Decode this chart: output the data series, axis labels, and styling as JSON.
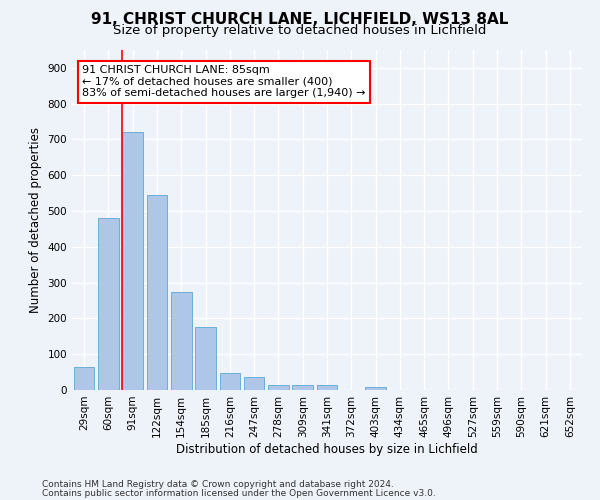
{
  "title1": "91, CHRIST CHURCH LANE, LICHFIELD, WS13 8AL",
  "title2": "Size of property relative to detached houses in Lichfield",
  "xlabel": "Distribution of detached houses by size in Lichfield",
  "ylabel": "Number of detached properties",
  "categories": [
    "29sqm",
    "60sqm",
    "91sqm",
    "122sqm",
    "154sqm",
    "185sqm",
    "216sqm",
    "247sqm",
    "278sqm",
    "309sqm",
    "341sqm",
    "372sqm",
    "403sqm",
    "434sqm",
    "465sqm",
    "496sqm",
    "527sqm",
    "559sqm",
    "590sqm",
    "621sqm",
    "652sqm"
  ],
  "values": [
    65,
    480,
    720,
    545,
    275,
    175,
    48,
    35,
    15,
    13,
    13,
    0,
    8,
    0,
    0,
    0,
    0,
    0,
    0,
    0,
    0
  ],
  "bar_color": "#aec6e8",
  "bar_edge_color": "#6aaed6",
  "red_line_index": 2,
  "ylim": [
    0,
    950
  ],
  "yticks": [
    0,
    100,
    200,
    300,
    400,
    500,
    600,
    700,
    800,
    900
  ],
  "annotation_title": "91 CHRIST CHURCH LANE: 85sqm",
  "annotation_line1": "← 17% of detached houses are smaller (400)",
  "annotation_line2": "83% of semi-detached houses are larger (1,940) →",
  "footer1": "Contains HM Land Registry data © Crown copyright and database right 2024.",
  "footer2": "Contains public sector information licensed under the Open Government Licence v3.0.",
  "bg_color": "#eef2f9",
  "grid_color": "#ffffff",
  "title_fontsize": 11,
  "subtitle_fontsize": 9.5,
  "axis_label_fontsize": 8.5,
  "tick_fontsize": 7.5,
  "footer_fontsize": 6.5,
  "annotation_fontsize": 8
}
